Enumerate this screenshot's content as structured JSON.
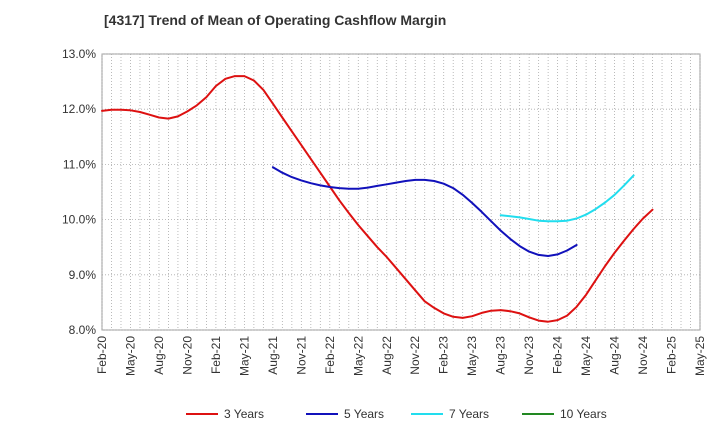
{
  "chart_data": {
    "type": "line",
    "title": "[4317]  Trend of Mean of Operating Cashflow Margin",
    "xlabel": "",
    "ylabel": "",
    "ylim": [
      8.0,
      13.0
    ],
    "y_ticks": [
      "8.0%",
      "9.0%",
      "10.0%",
      "11.0%",
      "12.0%",
      "13.0%"
    ],
    "x_ticks": [
      "Feb-20",
      "May-20",
      "Aug-20",
      "Nov-20",
      "Feb-21",
      "May-21",
      "Aug-21",
      "Nov-21",
      "Feb-22",
      "May-22",
      "Aug-22",
      "Nov-22",
      "Feb-23",
      "May-23",
      "Aug-23",
      "Nov-23",
      "Feb-24",
      "May-24",
      "Aug-24",
      "Nov-24",
      "Feb-25",
      "May-25"
    ],
    "grid": true,
    "legend_position": "bottom",
    "series": [
      {
        "name": "3 Years",
        "color": "#dd1111",
        "points": [
          [
            "Feb-20",
            11.97
          ],
          [
            "Mar-20",
            11.99
          ],
          [
            "Apr-20",
            11.99
          ],
          [
            "May-20",
            11.98
          ],
          [
            "Jun-20",
            11.95
          ],
          [
            "Jul-20",
            11.9
          ],
          [
            "Aug-20",
            11.85
          ],
          [
            "Sep-20",
            11.83
          ],
          [
            "Oct-20",
            11.87
          ],
          [
            "Nov-20",
            11.96
          ],
          [
            "Dec-20",
            12.07
          ],
          [
            "Jan-21",
            12.22
          ],
          [
            "Feb-21",
            12.42
          ],
          [
            "Mar-21",
            12.55
          ],
          [
            "Apr-21",
            12.6
          ],
          [
            "May-21",
            12.6
          ],
          [
            "Jun-21",
            12.52
          ],
          [
            "Jul-21",
            12.35
          ],
          [
            "Aug-21",
            12.1
          ],
          [
            "Sep-21",
            11.85
          ],
          [
            "Oct-21",
            11.6
          ],
          [
            "Nov-21",
            11.35
          ],
          [
            "Dec-21",
            11.1
          ],
          [
            "Jan-22",
            10.85
          ],
          [
            "Feb-22",
            10.6
          ],
          [
            "Mar-22",
            10.35
          ],
          [
            "Apr-22",
            10.12
          ],
          [
            "May-22",
            9.9
          ],
          [
            "Jun-22",
            9.7
          ],
          [
            "Jul-22",
            9.5
          ],
          [
            "Aug-22",
            9.32
          ],
          [
            "Sep-22",
            9.12
          ],
          [
            "Oct-22",
            8.92
          ],
          [
            "Nov-22",
            8.72
          ],
          [
            "Dec-22",
            8.52
          ],
          [
            "Jan-23",
            8.4
          ],
          [
            "Feb-23",
            8.3
          ],
          [
            "Mar-23",
            8.24
          ],
          [
            "Apr-23",
            8.22
          ],
          [
            "May-23",
            8.25
          ],
          [
            "Jun-23",
            8.31
          ],
          [
            "Jul-23",
            8.35
          ],
          [
            "Aug-23",
            8.36
          ],
          [
            "Sep-23",
            8.34
          ],
          [
            "Oct-23",
            8.3
          ],
          [
            "Nov-23",
            8.23
          ],
          [
            "Dec-23",
            8.17
          ],
          [
            "Jan-24",
            8.15
          ],
          [
            "Feb-24",
            8.18
          ],
          [
            "Mar-24",
            8.26
          ],
          [
            "Apr-24",
            8.42
          ],
          [
            "May-24",
            8.64
          ],
          [
            "Jun-24",
            8.9
          ],
          [
            "Jul-24",
            9.16
          ],
          [
            "Aug-24",
            9.4
          ],
          [
            "Sep-24",
            9.62
          ],
          [
            "Oct-24",
            9.83
          ],
          [
            "Nov-24",
            10.02
          ],
          [
            "Dec-24",
            10.18
          ]
        ]
      },
      {
        "name": "5 Years",
        "color": "#1111bb",
        "points": [
          [
            "Aug-21",
            10.95
          ],
          [
            "Sep-21",
            10.85
          ],
          [
            "Oct-21",
            10.77
          ],
          [
            "Nov-21",
            10.71
          ],
          [
            "Dec-21",
            10.66
          ],
          [
            "Jan-22",
            10.62
          ],
          [
            "Feb-22",
            10.59
          ],
          [
            "Mar-22",
            10.57
          ],
          [
            "Apr-22",
            10.56
          ],
          [
            "May-22",
            10.56
          ],
          [
            "Jun-22",
            10.58
          ],
          [
            "Jul-22",
            10.61
          ],
          [
            "Aug-22",
            10.64
          ],
          [
            "Sep-22",
            10.67
          ],
          [
            "Oct-22",
            10.7
          ],
          [
            "Nov-22",
            10.72
          ],
          [
            "Dec-22",
            10.72
          ],
          [
            "Jan-23",
            10.7
          ],
          [
            "Feb-23",
            10.65
          ],
          [
            "Mar-23",
            10.57
          ],
          [
            "Apr-23",
            10.45
          ],
          [
            "May-23",
            10.3
          ],
          [
            "Jun-23",
            10.14
          ],
          [
            "Jul-23",
            9.97
          ],
          [
            "Aug-23",
            9.8
          ],
          [
            "Sep-23",
            9.65
          ],
          [
            "Oct-23",
            9.52
          ],
          [
            "Nov-23",
            9.42
          ],
          [
            "Dec-23",
            9.36
          ],
          [
            "Jan-24",
            9.34
          ],
          [
            "Feb-24",
            9.37
          ],
          [
            "Mar-24",
            9.44
          ],
          [
            "Apr-24",
            9.54
          ]
        ]
      },
      {
        "name": "7 Years",
        "color": "#22ddee",
        "points": [
          [
            "Aug-23",
            10.08
          ],
          [
            "Sep-23",
            10.06
          ],
          [
            "Oct-23",
            10.04
          ],
          [
            "Nov-23",
            10.01
          ],
          [
            "Dec-23",
            9.98
          ],
          [
            "Jan-24",
            9.97
          ],
          [
            "Feb-24",
            9.97
          ],
          [
            "Mar-24",
            9.98
          ],
          [
            "Apr-24",
            10.02
          ],
          [
            "May-24",
            10.09
          ],
          [
            "Jun-24",
            10.19
          ],
          [
            "Jul-24",
            10.31
          ],
          [
            "Aug-24",
            10.45
          ],
          [
            "Sep-24",
            10.62
          ],
          [
            "Oct-24",
            10.8
          ]
        ]
      },
      {
        "name": "10 Years",
        "color": "#228822",
        "points": []
      }
    ]
  }
}
